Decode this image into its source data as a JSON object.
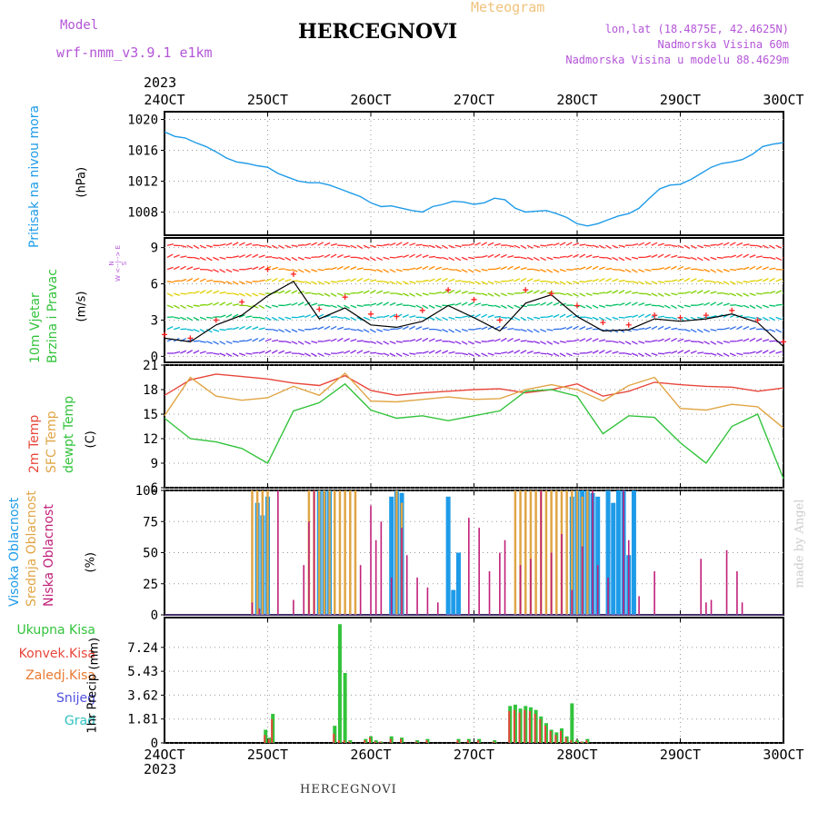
{
  "header": {
    "model_label": "Model",
    "model_name": "wrf-nmm_v3.9.1  e1km",
    "title": "HERCEGNOVI",
    "meteogram_label": "Meteogram",
    "coords": "lon,lat (18.4875E, 42.4625N)",
    "altitude": "Nadmorska Visina 60m",
    "model_altitude": "Nadmorska Visina u modelu 88.4629m",
    "credit": "made by Angel",
    "footer_title": "HERCEGNOVI"
  },
  "colors": {
    "pressure": "#1e9be8",
    "temp2m": "#e8463a",
    "sfc": "#e0a545",
    "dewpt": "#33c33c",
    "high_cloud": "#1e9be8",
    "mid_cloud": "#e0a545",
    "low_cloud": "#c0207a",
    "total_precip": "#33c33c",
    "conv_precip": "#e8463a",
    "frozen_precip": "#e87a30",
    "snow": "#5050e0",
    "hail": "#30c0c0",
    "wind_label": "#b455d8"
  },
  "axes": {
    "year": "2023",
    "x_labels": [
      "24OCT",
      "25OCT",
      "26OCT",
      "27OCT",
      "28OCT",
      "29OCT",
      "30OCT"
    ]
  },
  "chart_data": [
    {
      "type": "line",
      "ylabel": "Pritisak na nivou mora",
      "unit": "(hPa)",
      "ylim": [
        1005,
        1021
      ],
      "yticks": [
        "1008",
        "1012",
        "1016",
        "1020"
      ],
      "x_days": [
        0,
        0.1,
        0.2,
        0.3,
        0.4,
        0.5,
        0.6,
        0.7,
        0.8,
        0.9,
        1.0,
        1.1,
        1.2,
        1.3,
        1.4,
        1.5,
        1.6,
        1.7,
        1.8,
        1.9,
        2.0,
        2.1,
        2.2,
        2.3,
        2.4,
        2.5,
        2.6,
        2.7,
        2.8,
        2.9,
        3.0,
        3.1,
        3.2,
        3.3,
        3.4,
        3.5,
        3.6,
        3.7,
        3.8,
        3.9,
        4.0,
        4.1,
        4.2,
        4.3,
        4.4,
        4.5,
        4.6,
        4.7,
        4.8,
        4.9,
        5.0,
        5.1,
        5.2,
        5.3,
        5.4,
        5.5,
        5.6,
        5.7,
        5.8,
        5.9,
        6.0
      ],
      "series": [
        {
          "values": [
            1018.4,
            1017.8,
            1017.6,
            1017.0,
            1016.5,
            1015.8,
            1015.0,
            1014.5,
            1014.3,
            1014.0,
            1013.8,
            1013.0,
            1012.5,
            1012.0,
            1011.8,
            1011.8,
            1011.5,
            1011.0,
            1010.5,
            1010.0,
            1009.2,
            1008.7,
            1008.8,
            1008.5,
            1008.2,
            1008.0,
            1008.7,
            1009.0,
            1009.4,
            1009.3,
            1009.0,
            1009.2,
            1009.8,
            1009.6,
            1008.5,
            1008.0,
            1008.1,
            1008.2,
            1007.8,
            1007.3,
            1006.5,
            1006.2,
            1006.5,
            1007.0,
            1007.5,
            1007.8,
            1008.5,
            1009.8,
            1011.0,
            1011.5,
            1011.6,
            1012.2,
            1013.0,
            1013.8,
            1014.3,
            1014.5,
            1014.8,
            1015.5,
            1016.5,
            1016.8,
            1017.0
          ]
        }
      ]
    },
    {
      "type": "line",
      "ylabel_lines": [
        "10m Vjetar",
        "Brzina i Pravac"
      ],
      "unit": "(m/s)",
      "compass_lines": [
        "N",
        "W <--|--> E",
        "S"
      ],
      "ylim": [
        -0.5,
        9.8
      ],
      "yticks": [
        "0",
        "3",
        "6",
        "9"
      ],
      "x_days": [
        0,
        0.25,
        0.5,
        0.75,
        1.0,
        1.25,
        1.5,
        1.75,
        2.0,
        2.25,
        2.5,
        2.75,
        3.0,
        3.25,
        3.5,
        3.75,
        4.0,
        4.25,
        4.5,
        4.75,
        5.0,
        5.25,
        5.5,
        5.75,
        6.0
      ],
      "series": [
        {
          "name": "speed",
          "values": [
            1.5,
            1.2,
            2.6,
            3.4,
            5.0,
            6.2,
            3.1,
            4.0,
            2.6,
            2.4,
            2.9,
            4.2,
            3.2,
            2.1,
            4.4,
            5.1,
            3.3,
            2.1,
            2.2,
            3.1,
            2.9,
            3.1,
            3.5,
            2.8,
            0.8
          ]
        },
        {
          "name": "gust",
          "values": [
            1.8,
            1.5,
            3.0,
            4.5,
            7.2,
            6.8,
            3.9,
            4.9,
            3.5,
            3.3,
            3.8,
            5.5,
            4.7,
            3.0,
            5.5,
            5.2,
            4.2,
            2.8,
            2.6,
            3.4,
            3.2,
            3.4,
            3.8,
            3.0,
            1.2
          ]
        }
      ]
    },
    {
      "type": "line",
      "ylabel_lines": [
        "2m Temp",
        "SFC Temp",
        "dewpt Temp"
      ],
      "unit": "(C)",
      "ylim": [
        6,
        21
      ],
      "yticks": [
        "6",
        "9",
        "12",
        "15",
        "18",
        "21"
      ],
      "x_days": [
        0,
        0.25,
        0.5,
        0.75,
        1.0,
        1.25,
        1.5,
        1.75,
        2.0,
        2.25,
        2.5,
        2.75,
        3.0,
        3.25,
        3.5,
        3.75,
        4.0,
        4.25,
        4.5,
        4.75,
        5.0,
        5.25,
        5.5,
        5.75,
        6.0
      ],
      "series": [
        {
          "name": "2m Temp",
          "values": [
            17.3,
            19.2,
            19.9,
            19.6,
            19.3,
            18.8,
            18.5,
            19.7,
            17.9,
            17.3,
            17.6,
            17.8,
            18.0,
            18.1,
            17.6,
            18.0,
            18.7,
            17.2,
            17.8,
            18.9,
            18.6,
            18.4,
            18.3,
            17.8,
            18.2
          ]
        },
        {
          "name": "SFC Temp",
          "values": [
            14.8,
            19.5,
            17.2,
            16.7,
            17.0,
            18.4,
            17.3,
            20.0,
            16.6,
            16.5,
            16.8,
            17.1,
            16.8,
            16.9,
            18.0,
            18.6,
            18.0,
            16.6,
            18.5,
            19.5,
            15.7,
            15.5,
            16.2,
            15.9,
            13.3
          ]
        },
        {
          "name": "dewpt Temp",
          "values": [
            14.5,
            12.0,
            11.6,
            10.8,
            9.0,
            15.4,
            16.4,
            18.7,
            15.5,
            14.5,
            14.8,
            14.2,
            14.8,
            15.4,
            17.8,
            18.0,
            17.2,
            12.6,
            14.8,
            14.6,
            11.5,
            9.0,
            13.5,
            15.0,
            7.1
          ]
        }
      ]
    },
    {
      "type": "bar",
      "ylabel_lines": [
        "Visoka Oblacnost",
        "Srednja Oblacnost",
        "Niska Oblacnost"
      ],
      "unit": "(%)",
      "ylim": [
        0,
        100
      ],
      "yticks": [
        "0",
        "25",
        "50",
        "75",
        "100"
      ],
      "series": [
        {
          "name": "Visoka Oblacnost",
          "x_days": [
            0.9,
            0.95,
            1.0,
            1.5,
            1.55,
            1.6,
            2.2,
            2.25,
            2.3,
            2.75,
            2.8,
            2.85,
            3.95,
            4.0,
            4.05,
            4.1,
            4.15,
            4.2,
            4.3,
            4.35,
            4.4,
            4.45,
            4.5,
            4.55
          ],
          "values": [
            90,
            80,
            95,
            100,
            100,
            100,
            95,
            100,
            98,
            95,
            20,
            50,
            95,
            100,
            100,
            100,
            98,
            95,
            100,
            90,
            100,
            100,
            48,
            100
          ]
        },
        {
          "name": "Srednja Oblacnost",
          "x_days": [
            0.85,
            0.9,
            0.95,
            1.0,
            1.4,
            1.45,
            1.5,
            1.55,
            1.6,
            1.65,
            1.7,
            1.75,
            1.8,
            1.85,
            2.25,
            2.3,
            3.4,
            3.45,
            3.5,
            3.55,
            3.6,
            3.65,
            3.7,
            3.75,
            3.8,
            3.85,
            3.9,
            3.95,
            4.0,
            4.05,
            4.1
          ],
          "values": [
            100,
            100,
            100,
            100,
            100,
            100,
            100,
            100,
            100,
            100,
            100,
            100,
            100,
            100,
            100,
            90,
            100,
            100,
            100,
            100,
            100,
            100,
            100,
            100,
            100,
            100,
            100,
            100,
            100,
            95,
            100
          ]
        },
        {
          "name": "Niska Oblacnost",
          "x_days": [
            0.85,
            0.92,
            1.1,
            1.25,
            1.35,
            1.4,
            1.45,
            1.9,
            2.0,
            2.05,
            2.1,
            2.2,
            2.3,
            2.35,
            2.45,
            2.55,
            2.65,
            2.95,
            3.05,
            3.15,
            3.25,
            3.3,
            3.45,
            3.55,
            3.65,
            3.75,
            3.85,
            3.95,
            4.05,
            4.15,
            4.2,
            4.3,
            4.45,
            4.5,
            4.6,
            4.75,
            5.2,
            5.25,
            5.3,
            5.45,
            5.55,
            5.6
          ],
          "values": [
            10,
            5,
            100,
            12,
            40,
            75,
            100,
            40,
            88,
            60,
            75,
            30,
            70,
            48,
            30,
            22,
            10,
            78,
            70,
            35,
            50,
            60,
            40,
            45,
            100,
            50,
            65,
            20,
            55,
            100,
            40,
            30,
            100,
            60,
            15,
            35,
            45,
            10,
            12,
            52,
            35,
            10
          ]
        }
      ]
    },
    {
      "type": "bar",
      "ylabel": "1hr Precip",
      "unit": "(mm)",
      "legend": [
        "Ukupna Kisa",
        "Konvek.Kisa",
        "Zaledj.Kisa",
        "Snijeg",
        "Grad"
      ],
      "ylim": [
        0,
        9.5
      ],
      "yticks": [
        "0",
        "1.81",
        "3.62",
        "5.43",
        "7.24"
      ],
      "x_days": [
        0.98,
        1.02,
        1.05,
        1.65,
        1.7,
        1.75,
        1.8,
        1.95,
        2.0,
        2.05,
        2.1,
        2.2,
        2.3,
        2.45,
        2.55,
        2.85,
        2.95,
        3.05,
        3.2,
        3.35,
        3.4,
        3.45,
        3.5,
        3.55,
        3.6,
        3.65,
        3.7,
        3.75,
        3.8,
        3.85,
        3.9,
        3.95,
        4.0,
        4.05,
        4.1
      ],
      "series": [
        {
          "name": "Ukupna Kisa",
          "values": [
            1.0,
            0.4,
            2.2,
            1.3,
            9.0,
            5.3,
            0.2,
            0.3,
            0.5,
            0.2,
            0.1,
            0.5,
            0.4,
            0.2,
            0.3,
            0.3,
            0.3,
            0.3,
            0.2,
            2.8,
            2.9,
            2.6,
            2.8,
            2.7,
            2.5,
            2.0,
            1.5,
            1.0,
            0.8,
            1.1,
            0.5,
            3.0,
            0.2,
            0.1,
            0.3
          ]
        },
        {
          "name": "Konvek.Kisa",
          "values": [
            0.6,
            0.3,
            1.8,
            0.7,
            0.2,
            0.2,
            0.1,
            0.2,
            0.4,
            0.1,
            0.1,
            0.3,
            0.3,
            0.1,
            0.2,
            0.2,
            0.2,
            0.2,
            0.1,
            2.4,
            2.5,
            2.3,
            2.5,
            2.4,
            2.2,
            1.8,
            1.3,
            0.9,
            0.6,
            0.9,
            0.4,
            0.2,
            0.1,
            0.1,
            0.2
          ]
        }
      ]
    }
  ]
}
